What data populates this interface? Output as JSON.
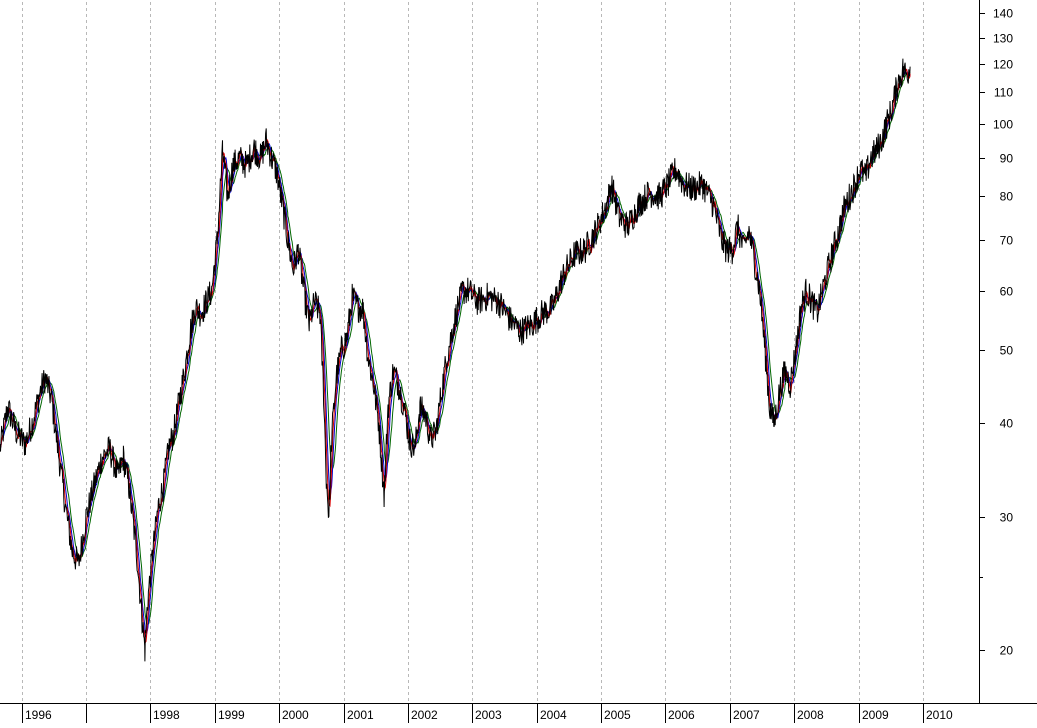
{
  "chart_data": {
    "type": "line",
    "title": "",
    "xlabel": "",
    "ylabel": "",
    "y_scale": "log",
    "ylim": [
      17,
      145
    ],
    "xlim": [
      "1995-09-01",
      "2010-11-15"
    ],
    "grid": {
      "vertical": true,
      "horizontal": false
    },
    "y_ticks": [
      20,
      30,
      40,
      50,
      60,
      70,
      80,
      90,
      100,
      110,
      120,
      130,
      140
    ],
    "y_tick_labels": [
      "20",
      "30",
      "40",
      "50",
      "60",
      "70",
      "80",
      "90",
      "100",
      "110",
      "120",
      "130",
      "140"
    ],
    "y_minor_ticks": [
      25
    ],
    "year_ticks": [
      "1996-01-01",
      "1997-01-01",
      "1998-01-01",
      "1999-01-01",
      "2000-01-01",
      "2001-01-01",
      "2002-01-01",
      "2003-01-01",
      "2004-01-01",
      "2005-01-01",
      "2006-01-01",
      "2007-01-01",
      "2008-01-01",
      "2009-01-01",
      "2010-01-01"
    ],
    "x_labels": [
      {
        "date": "1996-01-01",
        "text": "1996"
      },
      {
        "date": "1998-01-01",
        "text": "1998"
      },
      {
        "date": "1999-01-01",
        "text": "1999"
      },
      {
        "date": "2000-01-01",
        "text": "2000"
      },
      {
        "date": "2001-01-01",
        "text": "2001"
      },
      {
        "date": "2002-01-01",
        "text": "2002"
      },
      {
        "date": "2003-01-01",
        "text": "2003"
      },
      {
        "date": "2004-01-01",
        "text": "2004"
      },
      {
        "date": "2005-01-01",
        "text": "2005"
      },
      {
        "date": "2006-01-01",
        "text": "2006"
      },
      {
        "date": "2007-01-01",
        "text": "2007"
      },
      {
        "date": "2008-01-01",
        "text": "2008"
      },
      {
        "date": "2009-01-01",
        "text": "2009"
      },
      {
        "date": "2010-01-01",
        "text": "2010"
      }
    ],
    "series": [
      {
        "kind": "price",
        "color": "#000000",
        "points": [
          [
            "1995-09-01",
            37
          ],
          [
            "1995-10-15",
            42
          ],
          [
            "1995-12-01",
            39
          ],
          [
            "1996-01-20",
            37.5
          ],
          [
            "1996-03-01",
            40
          ],
          [
            "1996-04-15",
            44
          ],
          [
            "1996-05-15",
            46
          ],
          [
            "1996-06-20",
            43
          ],
          [
            "1996-08-01",
            36
          ],
          [
            "1996-09-15",
            30
          ],
          [
            "1996-10-15",
            27
          ],
          [
            "1996-11-20",
            26
          ],
          [
            "1997-01-01",
            30
          ],
          [
            "1997-02-15",
            33
          ],
          [
            "1997-04-01",
            36
          ],
          [
            "1997-05-15",
            37
          ],
          [
            "1997-07-01",
            34
          ],
          [
            "1997-08-01",
            36
          ],
          [
            "1997-09-01",
            33
          ],
          [
            "1997-10-15",
            27
          ],
          [
            "1997-11-15",
            22
          ],
          [
            "1997-12-01",
            20
          ],
          [
            "1997-12-15",
            23
          ],
          [
            "1998-01-15",
            27
          ],
          [
            "1998-02-15",
            31
          ],
          [
            "1998-03-15",
            33
          ],
          [
            "1998-04-15",
            37
          ],
          [
            "1998-05-15",
            39
          ],
          [
            "1998-06-15",
            43
          ],
          [
            "1998-07-15",
            47
          ],
          [
            "1998-08-15",
            53
          ],
          [
            "1998-09-15",
            57
          ],
          [
            "1998-10-15",
            56
          ],
          [
            "1998-11-15",
            58
          ],
          [
            "1998-12-15",
            60
          ],
          [
            "1999-01-15",
            70
          ],
          [
            "1999-02-15",
            92
          ],
          [
            "1999-03-15",
            80
          ],
          [
            "1999-04-15",
            88
          ],
          [
            "1999-05-20",
            90
          ],
          [
            "1999-07-01",
            88
          ],
          [
            "1999-08-10",
            93
          ],
          [
            "1999-09-20",
            90
          ],
          [
            "1999-10-20",
            95
          ],
          [
            "1999-11-20",
            90
          ],
          [
            "1999-12-20",
            86
          ],
          [
            "2000-01-20",
            78
          ],
          [
            "2000-02-20",
            70
          ],
          [
            "2000-03-20",
            64
          ],
          [
            "2000-04-20",
            68
          ],
          [
            "2000-05-20",
            60
          ],
          [
            "2000-06-20",
            54
          ],
          [
            "2000-07-20",
            58
          ],
          [
            "2000-08-20",
            56
          ],
          [
            "2000-09-10",
            44
          ],
          [
            "2000-09-25",
            34
          ],
          [
            "2000-10-10",
            30
          ],
          [
            "2000-10-25",
            38
          ],
          [
            "2000-11-20",
            46
          ],
          [
            "2000-12-20",
            50
          ],
          [
            "2001-01-20",
            52
          ],
          [
            "2001-02-20",
            59
          ],
          [
            "2001-03-20",
            57
          ],
          [
            "2001-04-20",
            57
          ],
          [
            "2001-05-20",
            49
          ],
          [
            "2001-06-20",
            45
          ],
          [
            "2001-07-20",
            40
          ],
          [
            "2001-08-20",
            32
          ],
          [
            "2001-09-10",
            42
          ],
          [
            "2001-10-10",
            47
          ],
          [
            "2001-11-10",
            45
          ],
          [
            "2001-12-10",
            42
          ],
          [
            "2002-01-10",
            38
          ],
          [
            "2002-02-10",
            37
          ],
          [
            "2002-03-10",
            42
          ],
          [
            "2002-04-10",
            41
          ],
          [
            "2002-05-10",
            38
          ],
          [
            "2002-06-10",
            39
          ],
          [
            "2002-07-10",
            44
          ],
          [
            "2002-08-10",
            49
          ],
          [
            "2002-09-10",
            53
          ],
          [
            "2002-10-10",
            57
          ],
          [
            "2002-11-10",
            60
          ],
          [
            "2002-12-10",
            60
          ],
          [
            "2003-02-01",
            58
          ],
          [
            "2003-04-01",
            59
          ],
          [
            "2003-06-01",
            58
          ],
          [
            "2003-08-01",
            55
          ],
          [
            "2003-10-01",
            53
          ],
          [
            "2003-12-01",
            54
          ],
          [
            "2004-02-01",
            56
          ],
          [
            "2004-04-01",
            57
          ],
          [
            "2004-06-01",
            63
          ],
          [
            "2004-08-01",
            67
          ],
          [
            "2004-10-01",
            68
          ],
          [
            "2004-12-01",
            72
          ],
          [
            "2005-02-01",
            78
          ],
          [
            "2005-03-01",
            83
          ],
          [
            "2005-04-15",
            75
          ],
          [
            "2005-06-01",
            73
          ],
          [
            "2005-08-01",
            78
          ],
          [
            "2005-10-01",
            81
          ],
          [
            "2005-12-01",
            80
          ],
          [
            "2006-01-15",
            83
          ],
          [
            "2006-03-01",
            87
          ],
          [
            "2006-04-15",
            83
          ],
          [
            "2006-06-01",
            82
          ],
          [
            "2006-08-01",
            83
          ],
          [
            "2006-10-01",
            78
          ],
          [
            "2006-11-15",
            70
          ],
          [
            "2006-12-15",
            68
          ],
          [
            "2007-01-15",
            68
          ],
          [
            "2007-02-15",
            73
          ],
          [
            "2007-03-20",
            68
          ],
          [
            "2007-04-20",
            72
          ],
          [
            "2007-05-20",
            66
          ],
          [
            "2007-06-20",
            60
          ],
          [
            "2007-07-20",
            50
          ],
          [
            "2007-08-15",
            42
          ],
          [
            "2007-09-10",
            40
          ],
          [
            "2007-10-10",
            44
          ],
          [
            "2007-11-10",
            47
          ],
          [
            "2007-12-10",
            45
          ],
          [
            "2008-01-10",
            50
          ],
          [
            "2008-02-10",
            57
          ],
          [
            "2008-03-10",
            60
          ],
          [
            "2008-04-10",
            58
          ],
          [
            "2008-05-10",
            56
          ],
          [
            "2008-06-10",
            60
          ],
          [
            "2008-07-10",
            64
          ],
          [
            "2008-08-10",
            68
          ],
          [
            "2008-09-10",
            72
          ],
          [
            "2008-10-10",
            77
          ],
          [
            "2008-11-10",
            80
          ],
          [
            "2008-12-10",
            83
          ],
          [
            "2009-01-10",
            87
          ],
          [
            "2009-02-10",
            85
          ],
          [
            "2009-03-10",
            90
          ],
          [
            "2009-04-10",
            92
          ],
          [
            "2009-05-10",
            95
          ],
          [
            "2009-06-10",
            100
          ],
          [
            "2009-07-10",
            105
          ],
          [
            "2009-08-10",
            113
          ],
          [
            "2009-09-10",
            118
          ],
          [
            "2009-10-01",
            116
          ],
          [
            "2009-10-20",
            119
          ]
        ]
      },
      {
        "kind": "ma",
        "period": 5,
        "color": "#dd0000"
      },
      {
        "kind": "ma",
        "period": 9,
        "color": "#0000cc"
      },
      {
        "kind": "ma",
        "period": 16,
        "color": "#006600"
      }
    ]
  }
}
